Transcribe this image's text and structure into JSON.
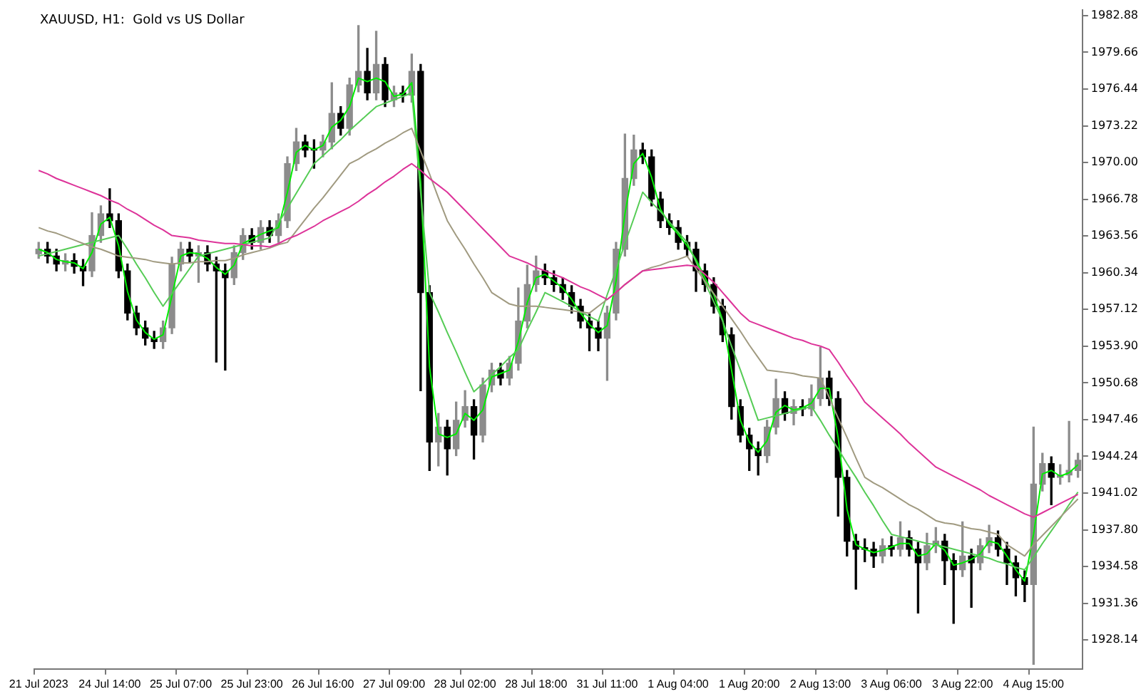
{
  "chart_data": {
    "type": "candlestick",
    "title": "XAUUSD, H1:  Gold vs US Dollar",
    "categories": [
      "21 Jul 2023",
      null,
      null,
      null,
      null,
      null,
      null,
      null,
      "24 Jul 14:00",
      null,
      null,
      null,
      null,
      null,
      null,
      null,
      "25 Jul 07:00",
      null,
      null,
      null,
      null,
      null,
      null,
      null,
      "25 Jul 23:00",
      null,
      null,
      null,
      null,
      null,
      null,
      null,
      "26 Jul 16:00",
      null,
      null,
      null,
      null,
      null,
      null,
      null,
      "27 Jul 09:00",
      null,
      null,
      null,
      null,
      null,
      null,
      null,
      "28 Jul 02:00",
      null,
      null,
      null,
      null,
      null,
      null,
      null,
      "28 Jul 18:00",
      null,
      null,
      null,
      null,
      null,
      null,
      null,
      "31 Jul 11:00",
      null,
      null,
      null,
      null,
      null,
      null,
      null,
      "1 Aug 04:00",
      null,
      null,
      null,
      null,
      null,
      null,
      null,
      "1 Aug 20:00",
      null,
      null,
      null,
      null,
      null,
      null,
      null,
      "2 Aug 13:00",
      null,
      null,
      null,
      null,
      null,
      null,
      null,
      "3 Aug 06:00",
      null,
      null,
      null,
      null,
      null,
      null,
      null,
      "3 Aug 22:00",
      null,
      null,
      null,
      null,
      null,
      null,
      null,
      "4 Aug 15:00",
      null,
      null,
      null,
      null,
      null
    ],
    "ohlc": [
      [
        1962.0,
        1963.0,
        1961.6,
        1962.4
      ],
      [
        1962.4,
        1963.0,
        1961.2,
        1961.8
      ],
      [
        1961.8,
        1962.4,
        1960.5,
        1961.1
      ],
      [
        1961.1,
        1962.0,
        1960.5,
        1961.4
      ],
      [
        1961.4,
        1962.0,
        1960.3,
        1960.9
      ],
      [
        1960.9,
        1961.5,
        1959.2,
        1960.5
      ],
      [
        1960.5,
        1965.6,
        1960.0,
        1963.6
      ],
      [
        1963.6,
        1966.2,
        1963.0,
        1965.5
      ],
      [
        1965.5,
        1967.7,
        1964.3,
        1964.9
      ],
      [
        1964.9,
        1965.5,
        1959.9,
        1960.5
      ],
      [
        1960.5,
        1961.1,
        1956.2,
        1956.8
      ],
      [
        1956.8,
        1957.4,
        1954.9,
        1955.5
      ],
      [
        1955.5,
        1956.1,
        1954.0,
        1954.6
      ],
      [
        1954.6,
        1955.2,
        1953.7,
        1954.3
      ],
      [
        1954.3,
        1956.1,
        1953.7,
        1955.5
      ],
      [
        1955.5,
        1961.7,
        1955.0,
        1961.1
      ],
      [
        1961.1,
        1963.0,
        1960.5,
        1962.4
      ],
      [
        1962.4,
        1963.0,
        1961.2,
        1961.8
      ],
      [
        1961.8,
        1962.7,
        1959.5,
        1962.1
      ],
      [
        1962.1,
        1962.7,
        1960.5,
        1961.1
      ],
      [
        1961.1,
        1961.7,
        1952.5,
        1960.5
      ],
      [
        1960.5,
        1961.1,
        1951.8,
        1959.9
      ],
      [
        1959.9,
        1962.7,
        1959.3,
        1962.1
      ],
      [
        1962.1,
        1964.2,
        1961.5,
        1963.6
      ],
      [
        1963.6,
        1964.2,
        1962.4,
        1963.0
      ],
      [
        1963.0,
        1964.9,
        1962.4,
        1964.3
      ],
      [
        1964.3,
        1964.9,
        1963.0,
        1963.6
      ],
      [
        1963.6,
        1965.5,
        1963.0,
        1964.9
      ],
      [
        1964.9,
        1970.5,
        1964.3,
        1969.9
      ],
      [
        1969.9,
        1973.0,
        1969.3,
        1971.8
      ],
      [
        1971.8,
        1972.4,
        1970.5,
        1971.1
      ],
      [
        1971.1,
        1972.0,
        1969.5,
        1971.1
      ],
      [
        1971.1,
        1972.4,
        1970.5,
        1971.8
      ],
      [
        1971.8,
        1977.0,
        1971.2,
        1974.3
      ],
      [
        1974.3,
        1974.9,
        1972.4,
        1973.0
      ],
      [
        1973.0,
        1977.4,
        1972.4,
        1976.8
      ],
      [
        1976.8,
        1982.0,
        1976.2,
        1978.0
      ],
      [
        1978.0,
        1980.0,
        1975.5,
        1976.1
      ],
      [
        1976.1,
        1981.5,
        1975.5,
        1978.6
      ],
      [
        1978.6,
        1979.2,
        1974.9,
        1975.5
      ],
      [
        1975.5,
        1976.7,
        1974.9,
        1976.1
      ],
      [
        1976.1,
        1976.7,
        1975.3,
        1975.9
      ],
      [
        1975.9,
        1979.5,
        1975.3,
        1978.0
      ],
      [
        1978.0,
        1978.6,
        1950.0,
        1958.6
      ],
      [
        1958.6,
        1959.2,
        1943.0,
        1945.5
      ],
      [
        1945.5,
        1948.0,
        1943.4,
        1946.8
      ],
      [
        1946.8,
        1947.4,
        1942.6,
        1944.9
      ],
      [
        1944.9,
        1949.0,
        1944.3,
        1947.4
      ],
      [
        1947.4,
        1950.0,
        1946.8,
        1948.6
      ],
      [
        1948.6,
        1949.2,
        1944.0,
        1946.1
      ],
      [
        1946.1,
        1951.1,
        1945.5,
        1950.5
      ],
      [
        1950.5,
        1952.4,
        1949.9,
        1951.8
      ],
      [
        1951.8,
        1952.4,
        1950.5,
        1951.1
      ],
      [
        1951.1,
        1953.0,
        1950.5,
        1952.4
      ],
      [
        1952.4,
        1959.0,
        1951.8,
        1956.1
      ],
      [
        1956.1,
        1961.0,
        1955.5,
        1959.3
      ],
      [
        1959.3,
        1961.8,
        1958.7,
        1960.5
      ],
      [
        1960.5,
        1961.1,
        1959.3,
        1959.9
      ],
      [
        1959.9,
        1960.5,
        1958.7,
        1959.3
      ],
      [
        1959.3,
        1959.9,
        1958.0,
        1958.6
      ],
      [
        1958.6,
        1959.2,
        1956.8,
        1957.4
      ],
      [
        1957.4,
        1958.0,
        1955.5,
        1956.1
      ],
      [
        1956.1,
        1956.7,
        1953.5,
        1955.5
      ],
      [
        1955.5,
        1956.1,
        1953.5,
        1954.6
      ],
      [
        1954.6,
        1957.4,
        1950.9,
        1956.8
      ],
      [
        1956.8,
        1963.0,
        1956.2,
        1962.4
      ],
      [
        1962.4,
        1972.5,
        1961.8,
        1968.6
      ],
      [
        1968.6,
        1972.4,
        1968.0,
        1971.1
      ],
      [
        1971.1,
        1971.7,
        1969.9,
        1970.5
      ],
      [
        1970.5,
        1971.1,
        1966.2,
        1966.8
      ],
      [
        1966.8,
        1967.4,
        1964.3,
        1964.9
      ],
      [
        1964.9,
        1965.5,
        1963.7,
        1964.3
      ],
      [
        1964.3,
        1964.9,
        1962.4,
        1963.0
      ],
      [
        1963.0,
        1963.6,
        1961.8,
        1962.4
      ],
      [
        1962.4,
        1963.0,
        1958.7,
        1960.5
      ],
      [
        1960.5,
        1961.1,
        1958.7,
        1959.3
      ],
      [
        1959.3,
        1959.9,
        1956.8,
        1957.4
      ],
      [
        1957.4,
        1958.0,
        1954.3,
        1954.9
      ],
      [
        1954.9,
        1955.5,
        1947.5,
        1948.6
      ],
      [
        1948.6,
        1949.2,
        1945.5,
        1946.1
      ],
      [
        1946.1,
        1946.7,
        1943.0,
        1944.9
      ],
      [
        1944.9,
        1945.5,
        1942.6,
        1944.3
      ],
      [
        1944.3,
        1947.4,
        1943.7,
        1946.8
      ],
      [
        1946.8,
        1951.0,
        1946.2,
        1949.3
      ],
      [
        1949.3,
        1949.9,
        1947.4,
        1948.0
      ],
      [
        1948.0,
        1949.2,
        1947.0,
        1948.6
      ],
      [
        1948.6,
        1949.2,
        1947.8,
        1948.4
      ],
      [
        1948.4,
        1950.5,
        1947.8,
        1949.3
      ],
      [
        1949.3,
        1953.8,
        1948.7,
        1951.1
      ],
      [
        1951.1,
        1951.7,
        1948.7,
        1949.3
      ],
      [
        1949.3,
        1949.9,
        1939.0,
        1942.4
      ],
      [
        1942.4,
        1943.0,
        1935.5,
        1936.8
      ],
      [
        1936.8,
        1937.4,
        1932.6,
        1936.1
      ],
      [
        1936.1,
        1937.0,
        1935.0,
        1936.1
      ],
      [
        1936.1,
        1936.7,
        1934.5,
        1935.5
      ],
      [
        1935.5,
        1937.0,
        1934.9,
        1936.4
      ],
      [
        1936.4,
        1937.2,
        1935.5,
        1936.1
      ],
      [
        1936.1,
        1938.5,
        1935.5,
        1937.1
      ],
      [
        1937.1,
        1937.7,
        1935.5,
        1936.1
      ],
      [
        1936.1,
        1936.7,
        1930.5,
        1934.9
      ],
      [
        1934.9,
        1937.5,
        1934.3,
        1936.4
      ],
      [
        1936.4,
        1938.0,
        1935.8,
        1936.8
      ],
      [
        1936.8,
        1937.4,
        1933.0,
        1935.1
      ],
      [
        1935.1,
        1935.7,
        1929.6,
        1934.3
      ],
      [
        1934.3,
        1938.5,
        1933.7,
        1935.5
      ],
      [
        1935.5,
        1936.1,
        1931.0,
        1934.9
      ],
      [
        1934.9,
        1937.0,
        1934.3,
        1936.4
      ],
      [
        1936.4,
        1938.2,
        1935.8,
        1937.1
      ],
      [
        1937.1,
        1937.7,
        1935.5,
        1936.1
      ],
      [
        1936.1,
        1936.7,
        1933.0,
        1934.9
      ],
      [
        1934.9,
        1935.5,
        1932.0,
        1933.6
      ],
      [
        1933.6,
        1934.2,
        1931.5,
        1933.0
      ],
      [
        1933.0,
        1946.8,
        1926.0,
        1941.8
      ],
      [
        1941.8,
        1944.5,
        1941.2,
        1943.6
      ],
      [
        1943.6,
        1944.2,
        1940.0,
        1942.4
      ],
      [
        1942.4,
        1943.5,
        1941.8,
        1942.6
      ],
      [
        1942.6,
        1947.3,
        1942.0,
        1943.0
      ],
      [
        1943.0,
        1944.5,
        1942.4,
        1943.9
      ]
    ],
    "colors": [
      "#8c8c8c",
      "#000000",
      "#000000",
      "#8c8c8c",
      "#000000",
      "#000000",
      "#8c8c8c",
      "#8c8c8c",
      "#000000",
      "#000000",
      "#000000",
      "#000000",
      "#000000",
      "#000000",
      "#8c8c8c",
      "#8c8c8c",
      "#8c8c8c",
      "#000000",
      "#8c8c8c",
      "#000000",
      "#000000",
      "#000000",
      "#8c8c8c",
      "#8c8c8c",
      "#000000",
      "#8c8c8c",
      "#000000",
      "#8c8c8c",
      "#8c8c8c",
      "#8c8c8c",
      "#000000",
      "#000000",
      "#8c8c8c",
      "#8c8c8c",
      "#000000",
      "#8c8c8c",
      "#8c8c8c",
      "#000000",
      "#8c8c8c",
      "#000000",
      "#8c8c8c",
      "#000000",
      "#8c8c8c",
      "#000000",
      "#000000",
      "#8c8c8c",
      "#000000",
      "#8c8c8c",
      "#8c8c8c",
      "#000000",
      "#8c8c8c",
      "#8c8c8c",
      "#000000",
      "#8c8c8c",
      "#8c8c8c",
      "#8c8c8c",
      "#8c8c8c",
      "#000000",
      "#000000",
      "#000000",
      "#000000",
      "#000000",
      "#000000",
      "#000000",
      "#8c8c8c",
      "#8c8c8c",
      "#8c8c8c",
      "#8c8c8c",
      "#000000",
      "#000000",
      "#000000",
      "#000000",
      "#000000",
      "#000000",
      "#000000",
      "#000000",
      "#000000",
      "#000000",
      "#000000",
      "#000000",
      "#000000",
      "#000000",
      "#8c8c8c",
      "#8c8c8c",
      "#000000",
      "#8c8c8c",
      "#000000",
      "#8c8c8c",
      "#8c8c8c",
      "#000000",
      "#000000",
      "#000000",
      "#000000",
      "#000000",
      "#000000",
      "#8c8c8c",
      "#000000",
      "#8c8c8c",
      "#000000",
      "#000000",
      "#8c8c8c",
      "#8c8c8c",
      "#000000",
      "#000000",
      "#8c8c8c",
      "#000000",
      "#8c8c8c",
      "#8c8c8c",
      "#000000",
      "#000000",
      "#000000",
      "#000000",
      "#8c8c8c",
      "#8c8c8c",
      "#000000",
      "#8c8c8c",
      "#8c8c8c",
      "#8c8c8c"
    ],
    "series": [
      {
        "type": "line",
        "color": "#dd3399",
        "values": [
          1969.3,
          1969.0,
          1968.6,
          1968.3,
          1968.0,
          1967.7,
          1967.4,
          1967.1,
          1966.7,
          1966.4,
          1965.9,
          1965.5,
          1965.0,
          1964.5,
          1964.1,
          1963.6,
          1963.5,
          1963.4,
          1963.2,
          1963.1,
          1963.0,
          1962.9,
          1962.9,
          1962.8,
          1962.7,
          1962.7,
          1962.6,
          1962.9,
          1963.3,
          1963.6,
          1964.0,
          1964.4,
          1964.9,
          1965.3,
          1965.7,
          1966.1,
          1966.6,
          1967.2,
          1967.7,
          1968.3,
          1968.8,
          1969.4,
          1969.9,
          1969.3,
          1968.6,
          1968.0,
          1967.4,
          1966.6,
          1965.8,
          1965.0,
          1964.2,
          1963.4,
          1962.6,
          1961.8,
          1961.5,
          1961.2,
          1960.8,
          1960.5,
          1960.2,
          1959.9,
          1959.5,
          1959.1,
          1958.8,
          1958.4,
          1958.0,
          1958.6,
          1959.3,
          1959.9,
          1960.5,
          1960.6,
          1960.7,
          1960.8,
          1960.9,
          1961.0,
          1960.9,
          1960.2,
          1959.5,
          1958.6,
          1957.7,
          1956.8,
          1956.1,
          1955.8,
          1955.5,
          1955.2,
          1954.9,
          1954.6,
          1954.4,
          1954.1,
          1953.9,
          1953.6,
          1952.5,
          1951.3,
          1950.2,
          1949.0,
          1948.3,
          1947.6,
          1946.9,
          1946.2,
          1945.4,
          1944.7,
          1944.0,
          1943.3,
          1942.9,
          1942.5,
          1942.1,
          1941.7,
          1941.3,
          1940.8,
          1940.4,
          1940.0,
          1939.6,
          1939.2,
          1938.9,
          1939.3,
          1939.7,
          1940.1,
          1940.5,
          1940.9
        ]
      },
      {
        "type": "line",
        "color": "#a09a80",
        "values": [
          1964.3,
          1964.0,
          1963.8,
          1963.5,
          1963.2,
          1962.9,
          1962.6,
          1962.4,
          1962.1,
          1961.8,
          1961.7,
          1961.6,
          1961.5,
          1961.3,
          1961.2,
          1961.1,
          1961.2,
          1961.2,
          1961.3,
          1961.3,
          1961.4,
          1961.4,
          1961.6,
          1961.9,
          1962.1,
          1962.3,
          1962.5,
          1962.8,
          1963.0,
          1964.0,
          1965.0,
          1966.0,
          1966.9,
          1967.9,
          1968.9,
          1969.9,
          1970.3,
          1970.8,
          1971.2,
          1971.7,
          1972.1,
          1972.6,
          1973.0,
          1971.0,
          1969.0,
          1966.9,
          1964.9,
          1963.6,
          1962.4,
          1961.1,
          1959.9,
          1958.6,
          1958.1,
          1957.6,
          1957.4,
          1957.4,
          1957.4,
          1957.3,
          1957.2,
          1957.1,
          1957.0,
          1956.9,
          1956.8,
          1957.4,
          1958.0,
          1958.6,
          1959.3,
          1959.9,
          1960.5,
          1960.8,
          1961.0,
          1961.3,
          1961.5,
          1961.8,
          1960.7,
          1959.6,
          1958.5,
          1957.4,
          1956.3,
          1955.2,
          1954.0,
          1952.9,
          1951.8,
          1951.7,
          1951.6,
          1951.5,
          1951.3,
          1951.2,
          1951.1,
          1949.4,
          1947.6,
          1945.9,
          1944.1,
          1942.4,
          1941.9,
          1941.5,
          1941.0,
          1940.5,
          1940.0,
          1939.6,
          1939.1,
          1938.6,
          1938.4,
          1938.3,
          1938.1,
          1937.9,
          1937.8,
          1937.6,
          1937.4,
          1936.5,
          1936.0,
          1935.5,
          1936.5,
          1937.3,
          1938.1,
          1938.9,
          1939.7,
          1940.5
        ]
      },
      {
        "type": "line",
        "color": "#55cc55",
        "values": [
          1961.8,
          1962.0,
          1962.2,
          1962.4,
          1962.6,
          1962.8,
          1963.0,
          1963.2,
          1963.4,
          1963.6,
          1962.4,
          1961.1,
          1959.9,
          1958.6,
          1957.4,
          1958.5,
          1959.6,
          1960.7,
          1961.8,
          1962.0,
          1962.2,
          1962.4,
          1962.6,
          1962.8,
          1963.0,
          1963.2,
          1963.4,
          1964.7,
          1966.0,
          1967.3,
          1968.6,
          1969.9,
          1970.6,
          1971.3,
          1972.0,
          1972.8,
          1973.5,
          1974.2,
          1974.9,
          1975.2,
          1975.5,
          1975.8,
          1976.1,
          1967.4,
          1958.6,
          1956.9,
          1955.1,
          1953.4,
          1951.6,
          1949.9,
          1950.6,
          1951.4,
          1952.1,
          1952.9,
          1953.6,
          1955.3,
          1956.9,
          1958.6,
          1958.2,
          1957.8,
          1957.4,
          1956.9,
          1956.5,
          1956.1,
          1958.4,
          1960.6,
          1962.9,
          1965.1,
          1967.4,
          1966.5,
          1965.7,
          1964.8,
          1963.9,
          1963.0,
          1961.3,
          1959.5,
          1957.8,
          1956.1,
          1953.9,
          1951.8,
          1949.6,
          1947.4,
          1947.6,
          1947.8,
          1948.0,
          1948.2,
          1948.4,
          1948.6,
          1947.4,
          1946.1,
          1944.9,
          1943.6,
          1942.4,
          1941.1,
          1939.9,
          1938.6,
          1937.4,
          1937.2,
          1937.0,
          1936.8,
          1936.6,
          1936.5,
          1936.3,
          1936.1,
          1935.9,
          1935.7,
          1935.5,
          1935.3,
          1935.0,
          1934.8,
          1934.5,
          1934.3,
          1935.4,
          1936.6,
          1937.7,
          1938.8,
          1940.0,
          1941.1
        ]
      },
      {
        "type": "line",
        "color": "#00ee00",
        "values": [
          1962.4,
          1962.1,
          1961.5,
          1961.3,
          1961.2,
          1960.7,
          1962.1,
          1964.6,
          1965.2,
          1962.7,
          1958.7,
          1956.2,
          1955.1,
          1954.5,
          1954.9,
          1958.3,
          1961.8,
          1962.1,
          1962.0,
          1961.6,
          1960.8,
          1960.2,
          1961.0,
          1962.9,
          1963.3,
          1963.7,
          1964.0,
          1964.3,
          1967.4,
          1970.9,
          1971.5,
          1971.1,
          1971.5,
          1973.1,
          1973.7,
          1974.9,
          1977.4,
          1977.1,
          1977.4,
          1977.1,
          1975.8,
          1976.0,
          1977.0,
          1968.3,
          1952.1,
          1946.2,
          1945.9,
          1946.2,
          1948.0,
          1947.4,
          1948.3,
          1951.2,
          1951.5,
          1951.8,
          1954.3,
          1957.7,
          1959.9,
          1960.2,
          1959.6,
          1959.0,
          1958.0,
          1956.8,
          1955.8,
          1955.1,
          1955.7,
          1959.6,
          1965.5,
          1969.9,
          1970.8,
          1968.7,
          1965.9,
          1964.6,
          1963.7,
          1962.7,
          1961.5,
          1959.9,
          1958.4,
          1956.2,
          1951.8,
          1947.4,
          1945.5,
          1944.6,
          1945.6,
          1948.1,
          1948.7,
          1948.3,
          1948.5,
          1948.9,
          1950.2,
          1950.2,
          1945.9,
          1939.6,
          1936.5,
          1936.1,
          1935.8,
          1936.0,
          1936.3,
          1936.6,
          1936.6,
          1935.5,
          1935.7,
          1936.6,
          1936.0,
          1934.7,
          1934.9,
          1935.2,
          1935.7,
          1936.8,
          1936.6,
          1935.5,
          1934.3,
          1933.3,
          1937.4,
          1942.7,
          1943.0,
          1942.5,
          1942.8,
          1943.5
        ]
      }
    ],
    "ylim": [
      1925.6,
      1983.4
    ],
    "yticks": [
      1928.14,
      1931.36,
      1934.58,
      {
        "value": 1937.8,
        "label": "1937.80"
      },
      1941.02,
      1944.24,
      1947.46,
      1950.68,
      {
        "value": 1953.9,
        "label": "1953.90"
      },
      1957.12,
      1960.34,
      1963.56,
      1966.78,
      {
        "value": 1970,
        "label": "1970.00"
      },
      1973.22,
      1976.44,
      1979.66,
      1982.88
    ],
    "grid": false,
    "legend": false
  }
}
